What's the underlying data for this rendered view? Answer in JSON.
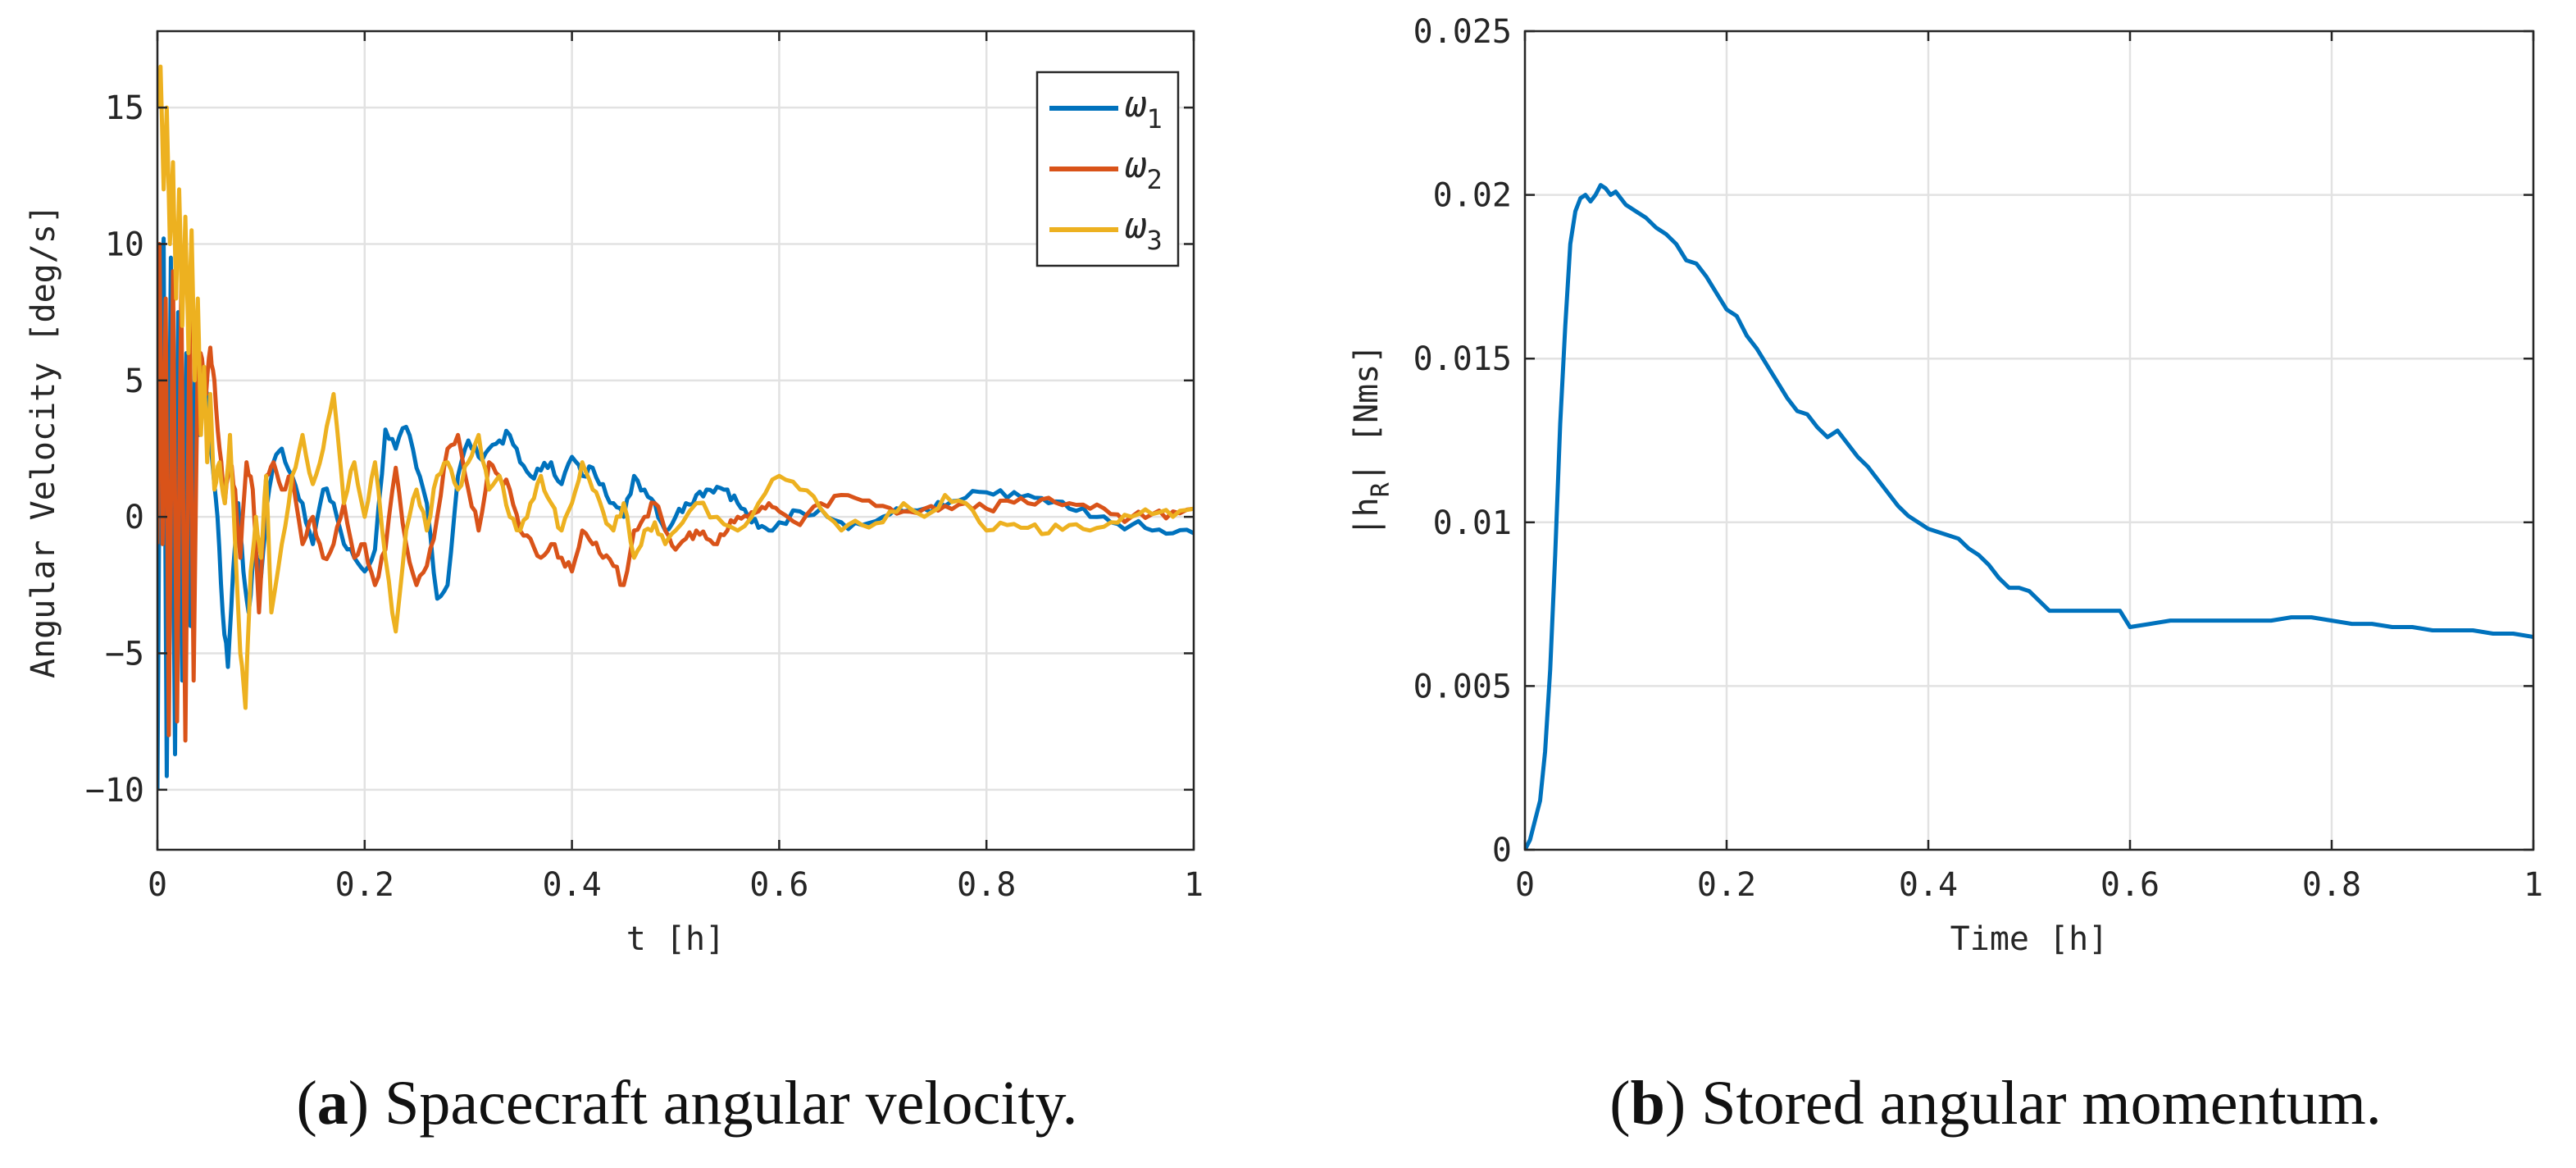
{
  "chart_data": [
    {
      "type": "line",
      "title": "",
      "xlabel": "t [h]",
      "ylabel": "Angular Velocity [deg/s]",
      "xlim": [
        0,
        1
      ],
      "ylim": [
        -12.2,
        17.8
      ],
      "grid": true,
      "legend": "top-right",
      "x_ticks": [
        0,
        0.2,
        0.4,
        0.6,
        0.8,
        1
      ],
      "x_tick_labels": [
        "0",
        "0.2",
        "0.4",
        "0.6",
        "0.8",
        "1"
      ],
      "y_ticks": [
        -10,
        -5,
        0,
        5,
        10,
        15
      ],
      "y_tick_labels": [
        "−10",
        "−5",
        "0",
        "5",
        "10",
        "15"
      ],
      "series": [
        {
          "name": "ω",
          "subscript": "1",
          "color": "#0072bd",
          "x": [
            0,
            0.003,
            0.006,
            0.009,
            0.013,
            0.017,
            0.02,
            0.024,
            0.028,
            0.032,
            0.036,
            0.04,
            0.044,
            0.048,
            0.053,
            0.058,
            0.063,
            0.068,
            0.073,
            0.078,
            0.083,
            0.088,
            0.094,
            0.1,
            0.106,
            0.112,
            0.12,
            0.13,
            0.14,
            0.15,
            0.16,
            0.17,
            0.18,
            0.19,
            0.2,
            0.21,
            0.22,
            0.23,
            0.24,
            0.25,
            0.26,
            0.27,
            0.28,
            0.29,
            0.3,
            0.31,
            0.32,
            0.33,
            0.34,
            0.35,
            0.36,
            0.37,
            0.38,
            0.39,
            0.4,
            0.41,
            0.42,
            0.43,
            0.44,
            0.45,
            0.46,
            0.47,
            0.48,
            0.49,
            0.5,
            0.51,
            0.52,
            0.53,
            0.54,
            0.55,
            0.56,
            0.57,
            0.58,
            0.59,
            0.6,
            0.62,
            0.64,
            0.66,
            0.68,
            0.7,
            0.72,
            0.74,
            0.76,
            0.78,
            0.8,
            0.82,
            0.84,
            0.86,
            0.88,
            0.9,
            0.92,
            0.94,
            0.96,
            0.98,
            1.0
          ],
          "values": [
            -10,
            8,
            10.2,
            -9.5,
            9.5,
            -8.7,
            7.5,
            -6,
            6,
            -4,
            5.5,
            3,
            5,
            4.5,
            2,
            0,
            -3.5,
            -5.5,
            -2,
            0.5,
            -2,
            -3.5,
            -1,
            -2.2,
            0.5,
            2,
            2.5,
            1.5,
            0.5,
            -1,
            1,
            0.5,
            -1,
            -1.5,
            -2,
            -1.2,
            3.2,
            2.5,
            3.3,
            1.8,
            0.5,
            -3,
            -2.5,
            1.5,
            2.8,
            2.2,
            2.5,
            2.8,
            3,
            2,
            1.5,
            1.7,
            2,
            1.2,
            2.2,
            1.5,
            1.8,
            1.2,
            0.5,
            0,
            1.5,
            1,
            0.5,
            -0.5,
            0,
            0.5,
            0.8,
            1,
            1.1,
            1,
            0.5,
            0,
            -0.4,
            -0.5,
            -0.2,
            0.2,
            0.3,
            -0.2,
            -0.3,
            0,
            0.2,
            0.3,
            0.4,
            0.7,
            0.9,
            0.7,
            0.8,
            0.5,
            0.3,
            0,
            -0.2,
            -0.3,
            -0.5,
            -0.6,
            -0.6
          ]
        },
        {
          "name": "ω",
          "subscript": "2",
          "color": "#d95319",
          "x": [
            0,
            0.002,
            0.005,
            0.008,
            0.011,
            0.015,
            0.019,
            0.023,
            0.027,
            0.031,
            0.035,
            0.039,
            0.043,
            0.047,
            0.051,
            0.055,
            0.06,
            0.065,
            0.07,
            0.075,
            0.08,
            0.086,
            0.092,
            0.098,
            0.105,
            0.112,
            0.12,
            0.13,
            0.14,
            0.15,
            0.16,
            0.17,
            0.18,
            0.19,
            0.2,
            0.21,
            0.22,
            0.23,
            0.24,
            0.25,
            0.26,
            0.27,
            0.28,
            0.29,
            0.3,
            0.31,
            0.32,
            0.33,
            0.34,
            0.35,
            0.36,
            0.37,
            0.38,
            0.39,
            0.4,
            0.41,
            0.42,
            0.43,
            0.44,
            0.45,
            0.46,
            0.47,
            0.48,
            0.49,
            0.5,
            0.51,
            0.52,
            0.53,
            0.54,
            0.55,
            0.56,
            0.57,
            0.58,
            0.59,
            0.6,
            0.62,
            0.64,
            0.66,
            0.68,
            0.7,
            0.72,
            0.74,
            0.76,
            0.78,
            0.8,
            0.82,
            0.84,
            0.86,
            0.88,
            0.9,
            0.92,
            0.94,
            0.96,
            0.98,
            1.0
          ],
          "values": [
            -1,
            10,
            -1,
            8,
            -8,
            9,
            -7.5,
            8.5,
            -8.2,
            7.5,
            -6,
            6,
            5.8,
            4.5,
            6.2,
            5,
            2.5,
            0.5,
            2,
            1,
            -1.5,
            2,
            1,
            -3.5,
            1.5,
            2,
            1,
            1.5,
            -1,
            0,
            -1.5,
            -1,
            0.5,
            -1.5,
            -1,
            -2.5,
            -1.2,
            1.8,
            -1,
            -2.5,
            -1.8,
            0,
            2.5,
            3,
            1,
            -0.5,
            2,
            1.5,
            1,
            -0.5,
            -0.8,
            -1.5,
            -1,
            -1.5,
            -2,
            -0.5,
            -1,
            -1.5,
            -1.8,
            -2.5,
            -0.5,
            0,
            0.5,
            -0.5,
            -1.2,
            -0.8,
            -0.5,
            -0.8,
            -1,
            -0.5,
            0,
            0,
            0.2,
            0.5,
            0.2,
            -0.3,
            0.5,
            0.8,
            0.6,
            0.4,
            0.2,
            0.3,
            0.4,
            0.5,
            0.3,
            0.6,
            0.5,
            0.7,
            0.5,
            0.3,
            0.1,
            0,
            0.1,
            0.2,
            0.3
          ]
        },
        {
          "name": "ω",
          "subscript": "3",
          "color": "#edb120",
          "x": [
            0,
            0.003,
            0.006,
            0.009,
            0.012,
            0.015,
            0.018,
            0.021,
            0.024,
            0.027,
            0.03,
            0.033,
            0.036,
            0.039,
            0.042,
            0.045,
            0.048,
            0.051,
            0.055,
            0.06,
            0.065,
            0.07,
            0.075,
            0.08,
            0.085,
            0.09,
            0.095,
            0.1,
            0.105,
            0.11,
            0.12,
            0.13,
            0.14,
            0.15,
            0.16,
            0.17,
            0.18,
            0.19,
            0.2,
            0.21,
            0.22,
            0.23,
            0.24,
            0.25,
            0.26,
            0.27,
            0.28,
            0.29,
            0.3,
            0.31,
            0.32,
            0.33,
            0.34,
            0.35,
            0.36,
            0.37,
            0.38,
            0.39,
            0.4,
            0.41,
            0.42,
            0.43,
            0.44,
            0.45,
            0.46,
            0.47,
            0.48,
            0.49,
            0.5,
            0.52,
            0.54,
            0.56,
            0.58,
            0.6,
            0.62,
            0.64,
            0.66,
            0.68,
            0.7,
            0.72,
            0.74,
            0.76,
            0.78,
            0.8,
            0.82,
            0.84,
            0.86,
            0.88,
            0.9,
            0.92,
            0.94,
            0.96,
            0.98,
            1.0
          ],
          "values": [
            15,
            16.5,
            12,
            15,
            10,
            13,
            8,
            12,
            7,
            11,
            6,
            10.5,
            5,
            8,
            3,
            5.5,
            2,
            4.5,
            1,
            2,
            0.5,
            3,
            -1,
            -5,
            -7,
            -2,
            0,
            -1.5,
            1.5,
            -3.5,
            -1,
            1.5,
            3,
            1.2,
            2.5,
            4.5,
            0.5,
            2,
            0,
            2,
            -1.5,
            -4.2,
            -0.5,
            1,
            -0.5,
            1.5,
            2,
            1,
            2,
            3,
            1,
            1.5,
            0,
            -0.5,
            0.5,
            1.5,
            0.5,
            -0.5,
            0.5,
            2,
            1,
            0.2,
            -0.5,
            0.5,
            -1.5,
            -0.5,
            -0.2,
            -1,
            -0.5,
            0.5,
            0,
            -0.5,
            0.5,
            1.5,
            1,
            0.3,
            -0.5,
            -0.3,
            -0.2,
            0.5,
            0,
            0.8,
            0.5,
            -0.5,
            -0.3,
            -0.4,
            -0.6,
            -0.3,
            -0.5,
            -0.2,
            0,
            0.1,
            0,
            0.3
          ]
        }
      ]
    },
    {
      "type": "line",
      "title": "",
      "xlabel": "Time [h]",
      "ylabel_bar": "|h",
      "ylabel_sub": "R",
      "ylabel_end": "| [Nms]",
      "xlim": [
        0,
        1
      ],
      "ylim": [
        0,
        0.025
      ],
      "grid": true,
      "legend": "none",
      "x_ticks": [
        0,
        0.2,
        0.4,
        0.6,
        0.8,
        1
      ],
      "x_tick_labels": [
        "0",
        "0.2",
        "0.4",
        "0.6",
        "0.8",
        "1"
      ],
      "y_ticks": [
        0,
        0.005,
        0.01,
        0.015,
        0.02,
        0.025
      ],
      "y_tick_labels": [
        "0",
        "0.005",
        "0.01",
        "0.015",
        "0.02",
        "0.025"
      ],
      "series": [
        {
          "name": "|h_R|",
          "color": "#0072bd",
          "x": [
            0,
            0.005,
            0.01,
            0.015,
            0.02,
            0.025,
            0.03,
            0.035,
            0.04,
            0.045,
            0.05,
            0.055,
            0.06,
            0.065,
            0.07,
            0.075,
            0.08,
            0.085,
            0.09,
            0.095,
            0.1,
            0.11,
            0.12,
            0.13,
            0.14,
            0.15,
            0.16,
            0.17,
            0.18,
            0.19,
            0.2,
            0.21,
            0.22,
            0.23,
            0.24,
            0.25,
            0.26,
            0.27,
            0.28,
            0.29,
            0.3,
            0.31,
            0.32,
            0.33,
            0.34,
            0.35,
            0.36,
            0.37,
            0.38,
            0.39,
            0.4,
            0.41,
            0.42,
            0.43,
            0.44,
            0.45,
            0.46,
            0.47,
            0.48,
            0.49,
            0.5,
            0.51,
            0.52,
            0.53,
            0.54,
            0.55,
            0.56,
            0.57,
            0.58,
            0.59,
            0.6,
            0.62,
            0.64,
            0.66,
            0.68,
            0.7,
            0.72,
            0.74,
            0.76,
            0.78,
            0.8,
            0.82,
            0.84,
            0.86,
            0.88,
            0.9,
            0.92,
            0.94,
            0.96,
            0.98,
            1.0
          ],
          "values": [
            0,
            0.0003,
            0.0009,
            0.0015,
            0.003,
            0.0055,
            0.009,
            0.013,
            0.016,
            0.0185,
            0.0195,
            0.0199,
            0.02,
            0.0198,
            0.02,
            0.0203,
            0.0202,
            0.02,
            0.0201,
            0.0199,
            0.0197,
            0.0195,
            0.0193,
            0.019,
            0.0188,
            0.0185,
            0.018,
            0.0179,
            0.0175,
            0.017,
            0.0165,
            0.0163,
            0.0157,
            0.0153,
            0.0148,
            0.0143,
            0.0138,
            0.0134,
            0.0133,
            0.0129,
            0.0126,
            0.0128,
            0.0124,
            0.012,
            0.0117,
            0.0113,
            0.0109,
            0.0105,
            0.0102,
            0.01,
            0.0098,
            0.0097,
            0.0096,
            0.0095,
            0.0092,
            0.009,
            0.0087,
            0.0083,
            0.008,
            0.008,
            0.0079,
            0.0076,
            0.0073,
            0.0073,
            0.0073,
            0.0073,
            0.0073,
            0.0073,
            0.0073,
            0.0073,
            0.0068,
            0.0069,
            0.007,
            0.007,
            0.007,
            0.007,
            0.007,
            0.007,
            0.0071,
            0.0071,
            0.007,
            0.0069,
            0.0069,
            0.0068,
            0.0068,
            0.0067,
            0.0067,
            0.0067,
            0.0066,
            0.0066,
            0.0065
          ]
        }
      ]
    }
  ],
  "captions": [
    {
      "label": "(a)",
      "letter": "a",
      "text": "Spacecraft angular velocity."
    },
    {
      "label": "(b)",
      "letter": "b",
      "text": "Stored angular momentum."
    }
  ]
}
